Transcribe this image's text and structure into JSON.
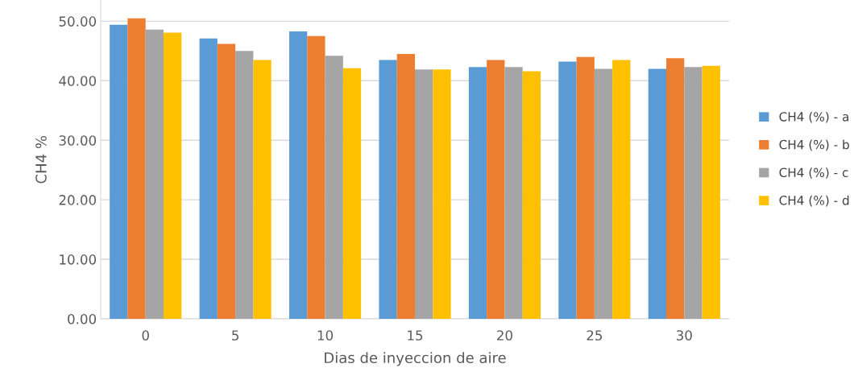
{
  "chart_data": {
    "type": "bar",
    "xlabel": "Dias de inyeccion de aire",
    "ylabel": "CH4 %",
    "categories": [
      "0",
      "5",
      "10",
      "15",
      "20",
      "25",
      "30"
    ],
    "series": [
      {
        "name": "CH4 (%) - a",
        "color": "#5b9bd5",
        "values": [
          49.4,
          47.1,
          48.3,
          43.5,
          42.3,
          43.2,
          42.0
        ]
      },
      {
        "name": "CH4 (%) - b",
        "color": "#ed7d31",
        "values": [
          50.5,
          46.2,
          47.5,
          44.5,
          43.5,
          44.0,
          43.8
        ]
      },
      {
        "name": "CH4 (%) - c",
        "color": "#a5a5a5",
        "values": [
          48.6,
          45.0,
          44.2,
          41.9,
          42.3,
          42.0,
          42.3
        ]
      },
      {
        "name": "CH4 (%) - d",
        "color": "#ffc000",
        "values": [
          48.1,
          43.5,
          42.1,
          41.9,
          41.6,
          43.5,
          42.5
        ]
      }
    ],
    "ylim": [
      0,
      53.5
    ],
    "yticks": [
      {
        "value": 0,
        "label": "0.00"
      },
      {
        "value": 10,
        "label": "10.00"
      },
      {
        "value": 20,
        "label": "20.00"
      },
      {
        "value": 30,
        "label": "30.00"
      },
      {
        "value": 40,
        "label": "40.00"
      },
      {
        "value": 50,
        "label": "50.00"
      }
    ],
    "grid": "y",
    "legend": "right"
  }
}
